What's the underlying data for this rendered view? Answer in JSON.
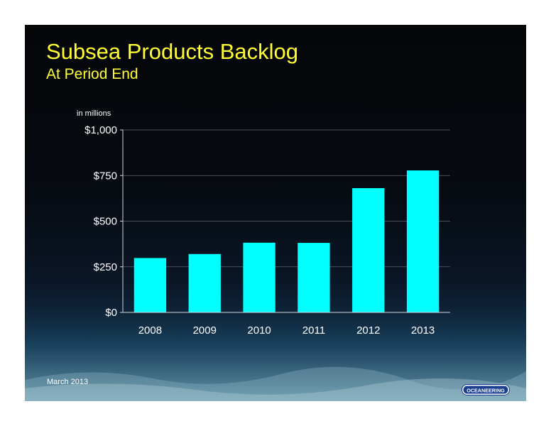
{
  "slide": {
    "title": "Subsea Products Backlog",
    "subtitle": "At Period End",
    "footer_date": "March 2013",
    "logo_text": "OCEANEERING"
  },
  "colors": {
    "title": "#ffff33",
    "bar": "#00ffff",
    "text": "#ffffff",
    "background": "#050608"
  },
  "chart_data": {
    "type": "bar",
    "categories": [
      "2008",
      "2009",
      "2010",
      "2011",
      "2012",
      "2013"
    ],
    "values": [
      298,
      320,
      382,
      381,
      681,
      778
    ],
    "title": "",
    "xlabel": "",
    "ylabel": "in millions",
    "ylim": [
      0,
      1000
    ],
    "yticks": [
      0,
      250,
      500,
      750,
      1000
    ],
    "ytick_labels": [
      "$0",
      "$250",
      "$500",
      "$750",
      "$1,000"
    ],
    "grid": true,
    "legend": "none"
  }
}
